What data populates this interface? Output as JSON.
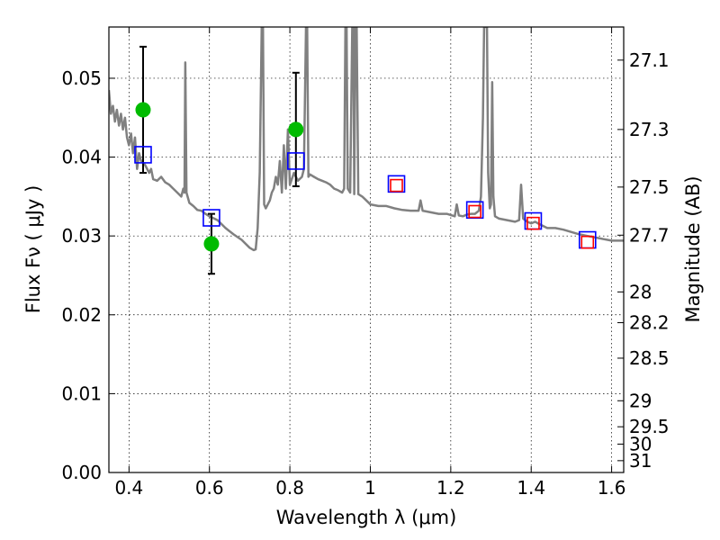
{
  "chart_data": {
    "type": "scatter",
    "xlabel": "Wavelength  λ (μm)",
    "ylabel": "Flux  Fν  ( μJy )",
    "ylabel_right": "Magnitude (AB)",
    "xlim": [
      0.35,
      1.63
    ],
    "ylim": [
      0.0,
      0.0565
    ],
    "grid": true,
    "x_ticks": [
      0.4,
      0.6,
      0.8,
      1.0,
      1.2,
      1.4,
      1.6
    ],
    "x_tick_labels": [
      "0.4",
      "0.6",
      "0.8",
      "1",
      "1.2",
      "1.4",
      "1.6"
    ],
    "y_ticks": [
      0.0,
      0.01,
      0.02,
      0.03,
      0.04,
      0.05
    ],
    "y_tick_labels": [
      "0.00",
      "0.01",
      "0.02",
      "0.03",
      "0.04",
      "0.05"
    ],
    "magnitude_ticks": [
      {
        "label": "27.1",
        "flux": 0.0523
      },
      {
        "label": "27.3",
        "flux": 0.0435
      },
      {
        "label": "27.5",
        "flux": 0.0362
      },
      {
        "label": "27.7",
        "flux": 0.0301
      },
      {
        "label": "28",
        "flux": 0.0229
      },
      {
        "label": "28.2",
        "flux": 0.019
      },
      {
        "label": "28.5",
        "flux": 0.0145
      },
      {
        "label": "29",
        "flux": 0.0091
      },
      {
        "label": "29.5",
        "flux": 0.0058
      },
      {
        "label": "30",
        "flux": 0.0036
      },
      {
        "label": "31",
        "flux": 0.0015
      }
    ],
    "series": [
      {
        "style": "line",
        "color": "#808080",
        "points": [
          [
            0.35,
            0.0485
          ],
          [
            0.355,
            0.0455
          ],
          [
            0.36,
            0.0465
          ],
          [
            0.365,
            0.0445
          ],
          [
            0.37,
            0.046
          ],
          [
            0.375,
            0.044
          ],
          [
            0.38,
            0.0455
          ],
          [
            0.385,
            0.0435
          ],
          [
            0.39,
            0.045
          ],
          [
            0.395,
            0.0425
          ],
          [
            0.4,
            0.0415
          ],
          [
            0.405,
            0.043
          ],
          [
            0.41,
            0.0405
          ],
          [
            0.415,
            0.0425
          ],
          [
            0.42,
            0.0385
          ],
          [
            0.425,
            0.0405
          ],
          [
            0.43,
            0.0395
          ],
          [
            0.44,
            0.039
          ],
          [
            0.45,
            0.038
          ],
          [
            0.455,
            0.0385
          ],
          [
            0.46,
            0.0372
          ],
          [
            0.47,
            0.037
          ],
          [
            0.48,
            0.0375
          ],
          [
            0.49,
            0.0368
          ],
          [
            0.5,
            0.0365
          ],
          [
            0.51,
            0.036
          ],
          [
            0.52,
            0.0355
          ],
          [
            0.53,
            0.035
          ],
          [
            0.535,
            0.036
          ],
          [
            0.538,
            0.0355
          ],
          [
            0.54,
            0.052
          ],
          [
            0.543,
            0.0355
          ],
          [
            0.55,
            0.0342
          ],
          [
            0.56,
            0.0338
          ],
          [
            0.57,
            0.0333
          ],
          [
            0.58,
            0.0332
          ],
          [
            0.59,
            0.0328
          ],
          [
            0.6,
            0.0325
          ],
          [
            0.62,
            0.032
          ],
          [
            0.64,
            0.031
          ],
          [
            0.66,
            0.0302
          ],
          [
            0.68,
            0.0295
          ],
          [
            0.7,
            0.0285
          ],
          [
            0.71,
            0.0282
          ],
          [
            0.715,
            0.0283
          ],
          [
            0.72,
            0.031
          ],
          [
            0.725,
            0.038
          ],
          [
            0.73,
            0.0565
          ],
          [
            0.733,
            0.0565
          ],
          [
            0.736,
            0.034
          ],
          [
            0.74,
            0.0335
          ],
          [
            0.75,
            0.0345
          ],
          [
            0.755,
            0.0355
          ],
          [
            0.76,
            0.036
          ],
          [
            0.765,
            0.0375
          ],
          [
            0.77,
            0.0365
          ],
          [
            0.775,
            0.0395
          ],
          [
            0.78,
            0.0355
          ],
          [
            0.785,
            0.0415
          ],
          [
            0.79,
            0.036
          ],
          [
            0.795,
            0.0435
          ],
          [
            0.8,
            0.0365
          ],
          [
            0.81,
            0.038
          ],
          [
            0.82,
            0.037
          ],
          [
            0.83,
            0.0375
          ],
          [
            0.835,
            0.0385
          ],
          [
            0.84,
            0.0565
          ],
          [
            0.843,
            0.0565
          ],
          [
            0.846,
            0.0375
          ],
          [
            0.85,
            0.0378
          ],
          [
            0.86,
            0.0375
          ],
          [
            0.87,
            0.0372
          ],
          [
            0.88,
            0.037
          ],
          [
            0.89,
            0.0368
          ],
          [
            0.9,
            0.0365
          ],
          [
            0.91,
            0.036
          ],
          [
            0.92,
            0.0358
          ],
          [
            0.93,
            0.0355
          ],
          [
            0.935,
            0.036
          ],
          [
            0.938,
            0.0565
          ],
          [
            0.941,
            0.0565
          ],
          [
            0.944,
            0.036
          ],
          [
            0.95,
            0.0355
          ],
          [
            0.955,
            0.0565
          ],
          [
            0.958,
            0.0565
          ],
          [
            0.96,
            0.0353
          ],
          [
            0.963,
            0.0565
          ],
          [
            0.966,
            0.0565
          ],
          [
            0.97,
            0.0353
          ],
          [
            0.98,
            0.035
          ],
          [
            0.99,
            0.0345
          ],
          [
            1.0,
            0.034
          ],
          [
            1.02,
            0.0338
          ],
          [
            1.04,
            0.0338
          ],
          [
            1.06,
            0.0335
          ],
          [
            1.08,
            0.0333
          ],
          [
            1.1,
            0.0332
          ],
          [
            1.12,
            0.0332
          ],
          [
            1.125,
            0.0345
          ],
          [
            1.13,
            0.0332
          ],
          [
            1.15,
            0.033
          ],
          [
            1.17,
            0.0328
          ],
          [
            1.19,
            0.0328
          ],
          [
            1.21,
            0.0325
          ],
          [
            1.215,
            0.034
          ],
          [
            1.22,
            0.0326
          ],
          [
            1.23,
            0.0325
          ],
          [
            1.24,
            0.0327
          ],
          [
            1.25,
            0.0328
          ],
          [
            1.26,
            0.0328
          ],
          [
            1.27,
            0.0332
          ],
          [
            1.275,
            0.035
          ],
          [
            1.28,
            0.045
          ],
          [
            1.283,
            0.0565
          ],
          [
            1.29,
            0.0565
          ],
          [
            1.293,
            0.038
          ],
          [
            1.297,
            0.0335
          ],
          [
            1.3,
            0.034
          ],
          [
            1.303,
            0.0495
          ],
          [
            1.306,
            0.035
          ],
          [
            1.31,
            0.0325
          ],
          [
            1.32,
            0.0322
          ],
          [
            1.34,
            0.032
          ],
          [
            1.36,
            0.0318
          ],
          [
            1.37,
            0.032
          ],
          [
            1.375,
            0.0365
          ],
          [
            1.38,
            0.0322
          ],
          [
            1.39,
            0.0318
          ],
          [
            1.4,
            0.0316
          ],
          [
            1.41,
            0.0318
          ],
          [
            1.42,
            0.0315
          ],
          [
            1.44,
            0.031
          ],
          [
            1.46,
            0.031
          ],
          [
            1.48,
            0.0308
          ],
          [
            1.5,
            0.0305
          ],
          [
            1.52,
            0.0302
          ],
          [
            1.54,
            0.03
          ],
          [
            1.56,
            0.0298
          ],
          [
            1.58,
            0.0296
          ],
          [
            1.6,
            0.0294
          ],
          [
            1.63,
            0.0294
          ]
        ]
      },
      {
        "style": "circle",
        "color": "#00bb00",
        "points": [
          {
            "x": 0.435,
            "y": 0.046,
            "err": 0.008
          },
          {
            "x": 0.605,
            "y": 0.029,
            "err": 0.0038
          },
          {
            "x": 0.815,
            "y": 0.0435,
            "err": 0.0072
          }
        ]
      },
      {
        "style": "open-square",
        "color": "#0000ff",
        "size": "large",
        "points": [
          {
            "x": 0.435,
            "y": 0.0403
          },
          {
            "x": 0.605,
            "y": 0.0323
          },
          {
            "x": 0.815,
            "y": 0.0395
          },
          {
            "x": 1.065,
            "y": 0.0366
          },
          {
            "x": 1.26,
            "y": 0.0333
          },
          {
            "x": 1.405,
            "y": 0.0319
          },
          {
            "x": 1.54,
            "y": 0.0295
          }
        ]
      },
      {
        "style": "open-square",
        "color": "#ff0000",
        "size": "small",
        "points": [
          {
            "x": 1.065,
            "y": 0.0364
          },
          {
            "x": 1.26,
            "y": 0.0331
          },
          {
            "x": 1.405,
            "y": 0.0316
          },
          {
            "x": 1.54,
            "y": 0.0292
          }
        ]
      }
    ]
  }
}
